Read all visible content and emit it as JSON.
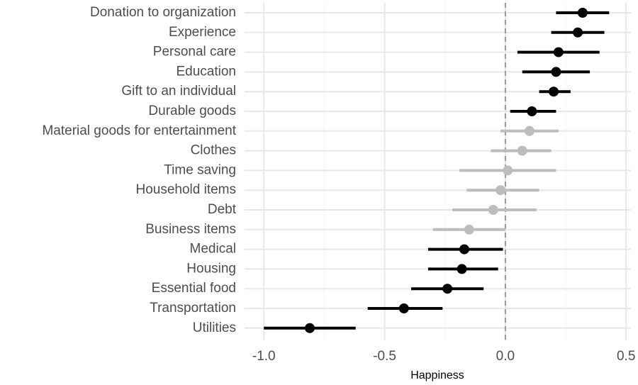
{
  "chart_data": {
    "type": "dotwhisker",
    "x_label": "Happiness",
    "categories": [
      "Donation to organization",
      "Experience",
      "Personal care",
      "Education",
      "Gift to an individual",
      "Durable goods",
      "Material goods for entertainment",
      "Clothes",
      "Time saving",
      "Household items",
      "Debt",
      "Business items",
      "Medical",
      "Housing",
      "Essential food",
      "Transportation",
      "Utilities"
    ],
    "values": [
      0.32,
      0.3,
      0.22,
      0.21,
      0.2,
      0.11,
      0.1,
      0.07,
      0.01,
      -0.02,
      -0.05,
      -0.15,
      -0.17,
      -0.18,
      -0.24,
      -0.42,
      -0.81
    ],
    "ci_low": [
      0.21,
      0.19,
      0.05,
      0.07,
      0.14,
      0.02,
      -0.02,
      -0.06,
      -0.19,
      -0.16,
      -0.22,
      -0.3,
      -0.32,
      -0.32,
      -0.39,
      -0.57,
      -1.0
    ],
    "ci_high": [
      0.43,
      0.41,
      0.39,
      0.35,
      0.27,
      0.21,
      0.22,
      0.19,
      0.21,
      0.14,
      0.13,
      0.0,
      -0.01,
      -0.03,
      -0.09,
      -0.26,
      -0.62
    ],
    "colors": [
      "#000000",
      "#000000",
      "#000000",
      "#000000",
      "#000000",
      "#000000",
      "#bdbdbd",
      "#bdbdbd",
      "#bdbdbd",
      "#bdbdbd",
      "#bdbdbd",
      "#bdbdbd",
      "#000000",
      "#000000",
      "#000000",
      "#000000",
      "#000000"
    ],
    "xlim": [
      -1.08,
      0.52
    ],
    "xticks": [
      {
        "value": -1.0,
        "label": "-1.0"
      },
      {
        "value": -0.5,
        "label": "-0.5"
      },
      {
        "value": 0,
        "label": "0.0"
      },
      {
        "value": 0.5,
        "label": "0.5"
      }
    ],
    "minor_xticks": [
      -0.75,
      -0.25,
      0.25
    ],
    "reference_line": 0,
    "grid": true
  }
}
